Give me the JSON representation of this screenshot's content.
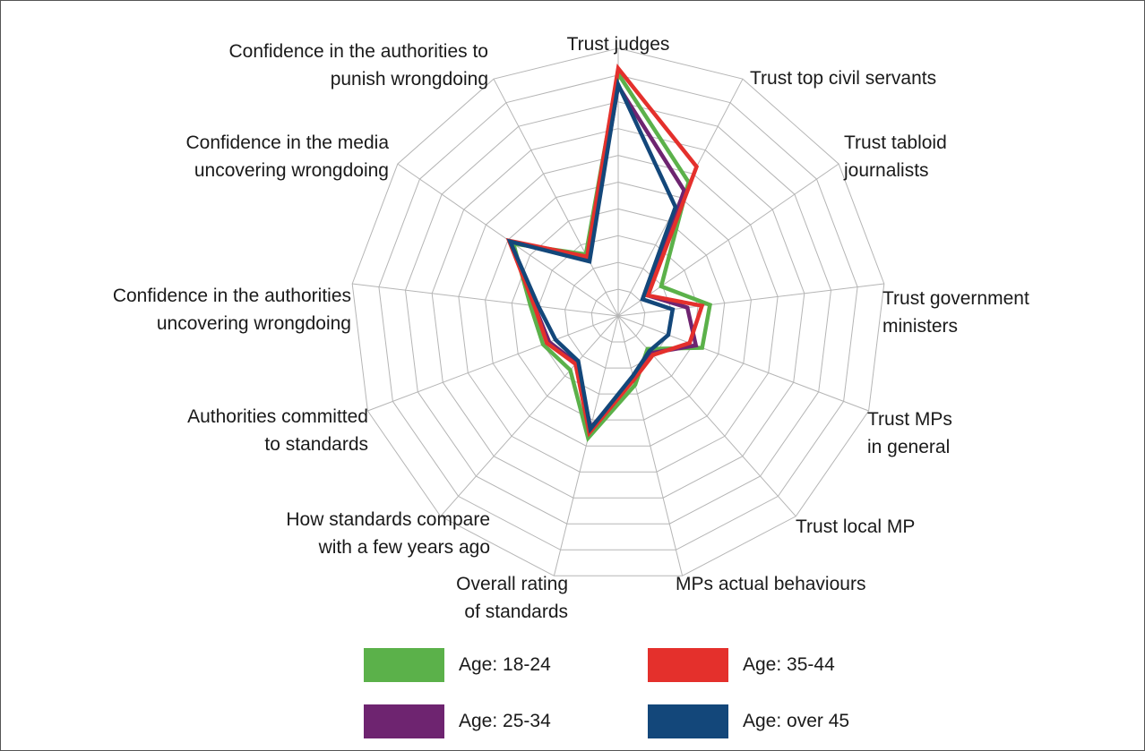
{
  "chart_data": {
    "type": "radar",
    "title": "",
    "categories": [
      [
        "Trust judges"
      ],
      [
        "Trust top civil servants"
      ],
      [
        "Trust tabloid",
        "journalists"
      ],
      [
        "Trust government",
        "ministers"
      ],
      [
        "Trust MPs",
        "in general"
      ],
      [
        "Trust local MP"
      ],
      [
        "MPs actual behaviours"
      ],
      [
        "Overall rating",
        "of standards"
      ],
      [
        "How standards compare",
        "with a few years ago"
      ],
      [
        "Authorities committed",
        "to standards"
      ],
      [
        "Confidence in the authorities",
        "uncovering wrongdoing"
      ],
      [
        "Confidence in the media",
        "uncovering wrongdoing"
      ],
      [
        "Confidence in the authorities to",
        "punish wrongdoing"
      ]
    ],
    "rlim": [
      0,
      10
    ],
    "grid_rings": 10,
    "grid": true,
    "legend_position": "bottom",
    "series": [
      {
        "name": "Age: 18-24",
        "color": "#5bb14a",
        "values": [
          9.05,
          5.65,
          1.95,
          3.45,
          3.35,
          1.65,
          2.65,
          4.7,
          2.7,
          3.0,
          3.3,
          4.75,
          2.6
        ]
      },
      {
        "name": "Age: 25-34",
        "color": "#6e2470",
        "values": [
          8.6,
          5.3,
          1.35,
          2.6,
          3.1,
          1.85,
          2.45,
          4.3,
          2.35,
          2.75,
          3.15,
          4.9,
          2.4
        ]
      },
      {
        "name": "Age: 35-44",
        "color": "#e4302c",
        "values": [
          9.25,
          6.3,
          1.35,
          3.15,
          2.85,
          1.95,
          2.45,
          4.5,
          2.4,
          2.85,
          3.15,
          4.95,
          2.5
        ]
      },
      {
        "name": "Age: over 45",
        "color": "#13477a",
        "values": [
          8.65,
          4.6,
          1.1,
          2.05,
          2.0,
          1.75,
          2.3,
          4.35,
          2.25,
          2.5,
          3.0,
          4.9,
          2.3
        ]
      }
    ]
  }
}
